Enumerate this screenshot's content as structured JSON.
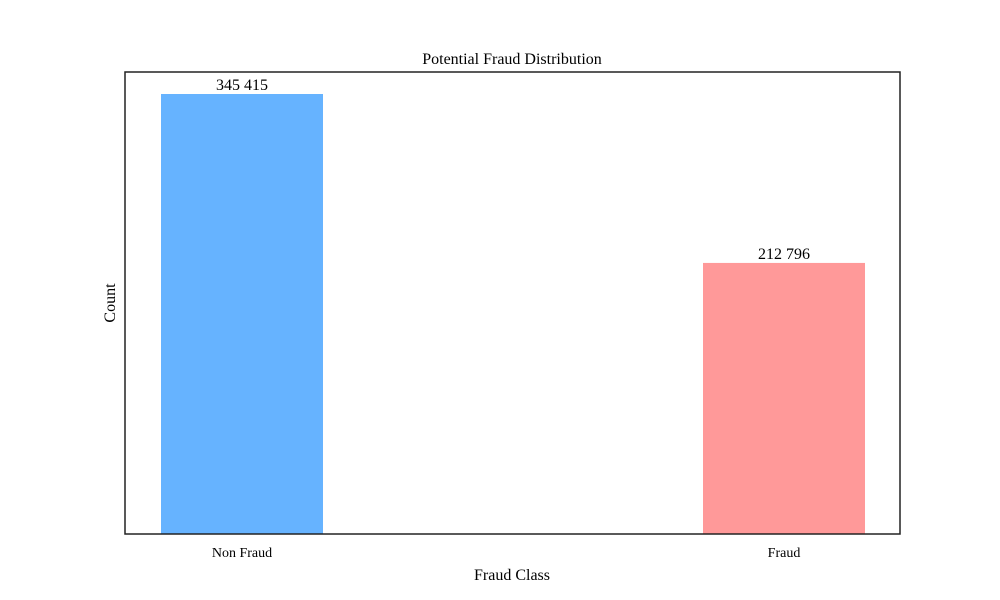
{
  "chart_data": {
    "type": "bar",
    "title": "Potential Fraud Distribution",
    "xlabel": "Fraud Class",
    "ylabel": "Count",
    "categories": [
      "Non Fraud",
      "Fraud"
    ],
    "values": [
      345415,
      212796
    ],
    "data_labels": [
      "345 415",
      "212 796"
    ],
    "colors": [
      "#66b3ff",
      "#ff9999"
    ],
    "ylim": [
      0,
      362686
    ],
    "grid": false,
    "y_ticks_visible": false
  }
}
